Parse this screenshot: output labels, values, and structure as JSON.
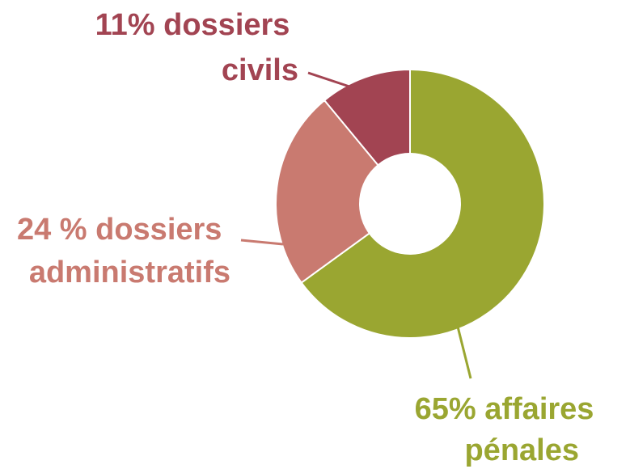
{
  "chart_data": {
    "type": "pie",
    "donut": true,
    "slices": [
      {
        "key": "penal",
        "value": 65,
        "color": "#9aa631",
        "lines": [
          "65% affaires",
          "pénales"
        ]
      },
      {
        "key": "admin",
        "value": 24,
        "color": "#c97a70",
        "lines": [
          "24 % dossiers",
          "administratifs"
        ]
      },
      {
        "key": "civil",
        "value": 11,
        "color": "#a24452",
        "lines": [
          "11% dossiers",
          "civils"
        ]
      }
    ],
    "legend": "none"
  }
}
